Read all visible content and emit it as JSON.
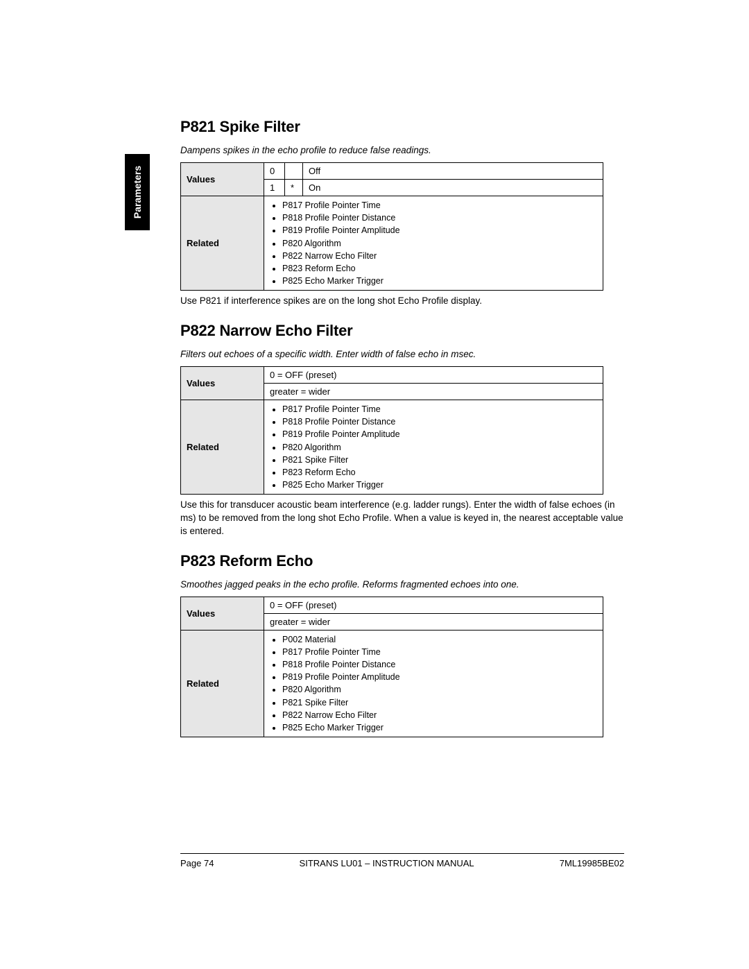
{
  "sideTab": "Parameters",
  "sections": [
    {
      "title": "P821 Spike Filter",
      "desc": "Dampens spikes in the echo profile to reduce false readings.",
      "values": [
        {
          "num": "0",
          "star": "",
          "label": "Off"
        },
        {
          "num": "1",
          "star": "*",
          "label": "On"
        }
      ],
      "valuesLabel": "Values",
      "relatedLabel": "Related",
      "related": [
        "P817 Profile Pointer Time",
        "P818 Profile Pointer Distance",
        "P819 Profile Pointer Amplitude",
        "P820 Algorithm",
        "P822 Narrow Echo Filter",
        "P823 Reform Echo",
        "P825 Echo Marker Trigger"
      ],
      "note": "Use P821 if interference spikes are on the long shot Echo Profile display."
    },
    {
      "title": "P822 Narrow Echo Filter",
      "desc": "Filters out echoes of a specific width. Enter width of false echo in msec.",
      "valuesSimple": [
        "0 = OFF (preset)",
        "greater = wider"
      ],
      "valuesLabel": "Values",
      "relatedLabel": "Related",
      "related": [
        "P817 Profile Pointer Time",
        "P818 Profile Pointer Distance",
        "P819 Profile Pointer Amplitude",
        "P820 Algorithm",
        "P821 Spike Filter",
        "P823 Reform Echo",
        "P825 Echo Marker Trigger"
      ],
      "note": "Use this for transducer acoustic beam interference (e.g. ladder rungs). Enter the width of false echoes (in ms) to be removed from the long shot Echo Profile. When a value is keyed in, the nearest acceptable value is entered."
    },
    {
      "title": "P823 Reform Echo",
      "desc": "Smoothes jagged peaks in the echo profile. Reforms fragmented echoes into one.",
      "valuesSimple": [
        "0 = OFF (preset)",
        "greater = wider"
      ],
      "valuesLabel": "Values",
      "relatedLabel": "Related",
      "related": [
        "P002 Material",
        "P817 Profile Pointer Time",
        "P818 Profile Pointer Distance",
        "P819 Profile Pointer Amplitude",
        "P820 Algorithm",
        "P821 Spike Filter",
        "P822 Narrow Echo Filter",
        "P825 Echo Marker Trigger"
      ]
    }
  ],
  "footer": {
    "left": "Page 74",
    "center": "SITRANS LU01 – INSTRUCTION MANUAL",
    "right": "7ML19985BE02"
  }
}
